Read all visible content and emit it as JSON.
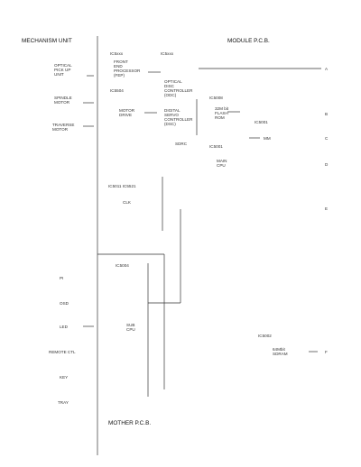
{
  "sections": {
    "mechanism_unit": "MECHANISM UNIT",
    "module_pcb": "MODULE P.C.B.",
    "mother_pcb": "MOTHER P.C.B."
  },
  "left_inputs": {
    "optical_pickup": "OPTICAL\nPICK UP\nUNIT",
    "spindle_motor": "SPINDLE\nMOTOR",
    "traverse_motor": "TRAVERSE\nMOTOR",
    "pi": "PI",
    "osd": "OSD",
    "led": "LED",
    "remote_ctl": "REMOTE CTL",
    "key": "KEY",
    "tray": "TRAY"
  },
  "blocks": {
    "ic_top_left": "IC5xxx",
    "ic_top_mid": "IC5xxx",
    "front_end": "FRONT\nEND\nPROCESSOR\n(FEP)",
    "optical_disc_ctrl": "OPTICAL\nDISC\nCONTROLLER\n(ODC)",
    "ic_motor": "IC5504",
    "motor_drive": "MOTOR\nDRIVE",
    "ic_flash": "IC5008",
    "digital_servo": "DIGITAL\nSERVO\nCONTROLLER\n(DSC)",
    "flash_rom": "32M bit\nFLASH\nROM",
    "ic_mpeg": "IC5001",
    "mpeg_mm": "MM",
    "sdrc": "SDRC",
    "ic_cpu": "IC5001",
    "main_cpu": "MAIN\nCPU",
    "ic_clk": "IC5011 IC5521",
    "clk": "CLK",
    "ic_sub": "IC5004",
    "sub_cpu": "SUB\nCPU",
    "ic_sdram": "IC5002",
    "sdram": "64Mbit\nSDRAM"
  },
  "output_letters": [
    "A",
    "B",
    "C",
    "D",
    "E",
    "F"
  ]
}
